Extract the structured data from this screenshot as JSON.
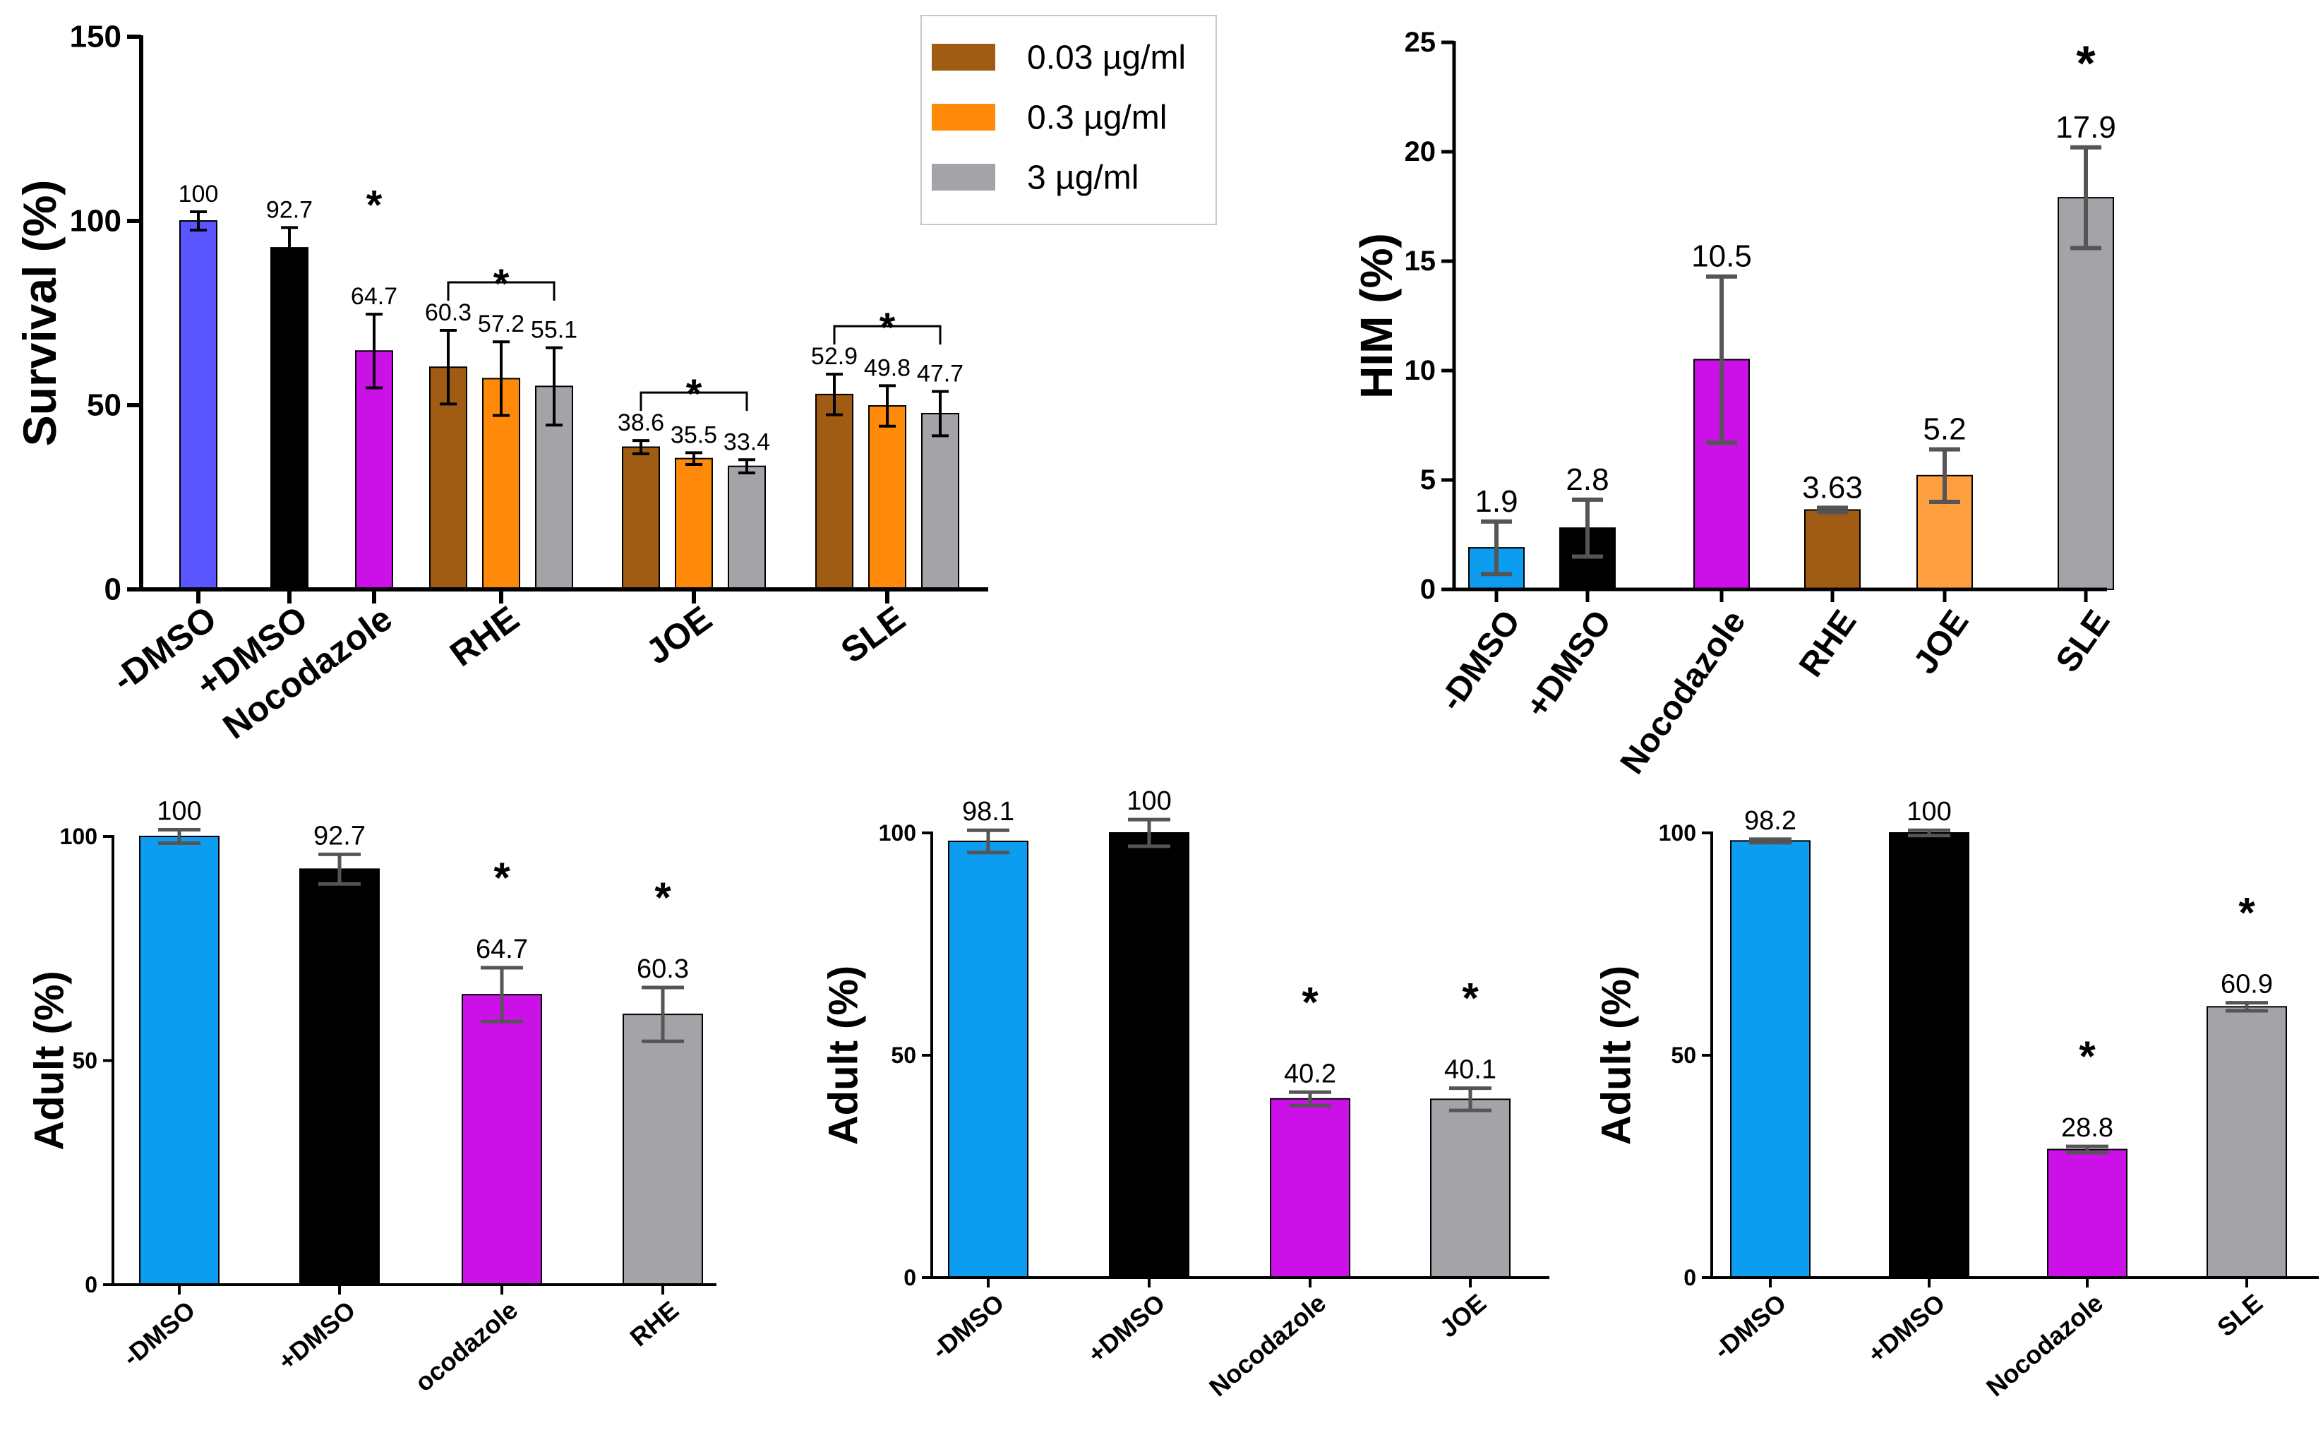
{
  "chart_data": [
    {
      "id": "A",
      "type": "bar",
      "title": "",
      "ylabel": "Survival (%)",
      "ylim": [
        0,
        150
      ],
      "yticks": [
        0,
        50,
        100,
        150
      ],
      "groups": [
        {
          "label": "-DMSO",
          "bars": [
            {
              "value": 100,
              "label": "100",
              "err": 2.5,
              "color": "#5a55ff"
            }
          ]
        },
        {
          "label": "+DMSO",
          "bars": [
            {
              "value": 92.7,
              "label": "92.7",
              "err": 5.5,
              "color": "#000000"
            }
          ]
        },
        {
          "label": "Nocodazole",
          "bars": [
            {
              "value": 64.7,
              "label": "64.7",
              "err": 10,
              "color": "#cc11e8"
            }
          ],
          "star": "*"
        },
        {
          "label": "RHE",
          "bars": [
            {
              "value": 60.3,
              "label": "60.3",
              "err": 10,
              "color": "#a05c12"
            },
            {
              "value": 57.2,
              "label": "57.2",
              "err": 10,
              "color": "#ff8a0a"
            },
            {
              "value": 55.1,
              "label": "55.1",
              "err": 10.5,
              "color": "#a3a3a8"
            }
          ],
          "star": "*",
          "bracket": true
        },
        {
          "label": "JOE",
          "bars": [
            {
              "value": 38.6,
              "label": "38.6",
              "err": 1.8,
              "color": "#a05c12"
            },
            {
              "value": 35.5,
              "label": "35.5",
              "err": 1.6,
              "color": "#ff8a0a"
            },
            {
              "value": 33.4,
              "label": "33.4",
              "err": 1.8,
              "color": "#a3a3a8"
            }
          ],
          "star": "*",
          "bracket": true
        },
        {
          "label": "SLE",
          "bars": [
            {
              "value": 52.9,
              "label": "52.9",
              "err": 5.5,
              "color": "#a05c12"
            },
            {
              "value": 49.8,
              "label": "49.8",
              "err": 5.5,
              "color": "#ff8a0a"
            },
            {
              "value": 47.7,
              "label": "47.7",
              "err": 6,
              "color": "#a3a3a8"
            }
          ],
          "star": "*",
          "bracket": true
        }
      ],
      "legend": [
        {
          "label": "0.03 µg/ml",
          "color": "#a05c12"
        },
        {
          "label": "0.3 µg/ml",
          "color": "#ff8a0a"
        },
        {
          "label": "3 µg/ml",
          "color": "#a3a3a8"
        }
      ]
    },
    {
      "id": "B",
      "type": "bar",
      "title": "",
      "ylabel": "HIM (%)",
      "ylim": [
        0,
        25
      ],
      "yticks": [
        0,
        5,
        10,
        15,
        20,
        25
      ],
      "groups": [
        {
          "label": "-DMSO",
          "bars": [
            {
              "value": 1.9,
              "label": "1.9",
              "err": 1.2,
              "color": "#0d9df0"
            }
          ]
        },
        {
          "label": "+DMSO",
          "bars": [
            {
              "value": 2.8,
              "label": "2.8",
              "err": 1.3,
              "color": "#000000"
            }
          ]
        },
        {
          "label": "Nocodazole",
          "bars": [
            {
              "value": 10.5,
              "label": "10.5",
              "err": 3.8,
              "color": "#cc11e8"
            }
          ]
        },
        {
          "label": "RHE",
          "bars": [
            {
              "value": 3.63,
              "label": "3.63",
              "err": 0.1,
              "color": "#a05c12"
            }
          ]
        },
        {
          "label": "JOE",
          "bars": [
            {
              "value": 5.2,
              "label": "5.2",
              "err": 1.2,
              "color": "#ffa040"
            }
          ]
        },
        {
          "label": "SLE",
          "bars": [
            {
              "value": 17.9,
              "label": "17.9",
              "err": 2.3,
              "color": "#a3a3a8"
            }
          ],
          "star": "*"
        }
      ]
    },
    {
      "id": "C",
      "type": "bar",
      "title": "",
      "ylabel": "Adult (%)",
      "ylim": [
        0,
        100
      ],
      "yticks": [
        0,
        50,
        100
      ],
      "groups": [
        {
          "label": "-DMSO",
          "bars": [
            {
              "value": 100,
              "label": "100",
              "err": 1.5,
              "color": "#0d9df0"
            }
          ]
        },
        {
          "label": "+DMSO",
          "bars": [
            {
              "value": 92.7,
              "label": "92.7",
              "err": 3.3,
              "color": "#000000"
            }
          ]
        },
        {
          "label": "ocodazole",
          "bars": [
            {
              "value": 64.7,
              "label": "64.7",
              "err": 6,
              "color": "#cc11e8"
            }
          ],
          "star": "*"
        },
        {
          "label": "RHE",
          "bars": [
            {
              "value": 60.3,
              "label": "60.3",
              "err": 6,
              "color": "#a3a3a8"
            }
          ],
          "star": "*"
        }
      ]
    },
    {
      "id": "D",
      "type": "bar",
      "title": "",
      "ylabel": "Adult (%)",
      "ylim": [
        0,
        100
      ],
      "yticks": [
        0,
        50,
        100
      ],
      "groups": [
        {
          "label": "-DMSO",
          "bars": [
            {
              "value": 98.1,
              "label": "98.1",
              "err": 2.5,
              "color": "#0d9df0"
            }
          ]
        },
        {
          "label": "+DMSO",
          "bars": [
            {
              "value": 100,
              "label": "100",
              "err": 3,
              "color": "#000000"
            }
          ]
        },
        {
          "label": "Nocodazole",
          "bars": [
            {
              "value": 40.2,
              "label": "40.2",
              "err": 1.5,
              "color": "#cc11e8"
            }
          ],
          "star": "*"
        },
        {
          "label": "JOE",
          "bars": [
            {
              "value": 40.1,
              "label": "40.1",
              "err": 2.5,
              "color": "#a3a3a8"
            }
          ],
          "star": "*"
        }
      ]
    },
    {
      "id": "E",
      "type": "bar",
      "title": "",
      "ylabel": "Adult (%)",
      "ylim": [
        0,
        100
      ],
      "yticks": [
        0,
        50,
        100
      ],
      "groups": [
        {
          "label": "-DMSO",
          "bars": [
            {
              "value": 98.2,
              "label": "98.2",
              "err": 0.4,
              "color": "#0d9df0"
            }
          ]
        },
        {
          "label": "+DMSO",
          "bars": [
            {
              "value": 100,
              "label": "100",
              "err": 0.6,
              "color": "#000000"
            }
          ]
        },
        {
          "label": "Nocodazole",
          "bars": [
            {
              "value": 28.8,
              "label": "28.8",
              "err": 0.7,
              "color": "#cc11e8"
            }
          ],
          "star": "*"
        },
        {
          "label": "SLE",
          "bars": [
            {
              "value": 60.9,
              "label": "60.9",
              "err": 0.9,
              "color": "#a3a3a8"
            }
          ],
          "star": "*"
        }
      ]
    }
  ]
}
